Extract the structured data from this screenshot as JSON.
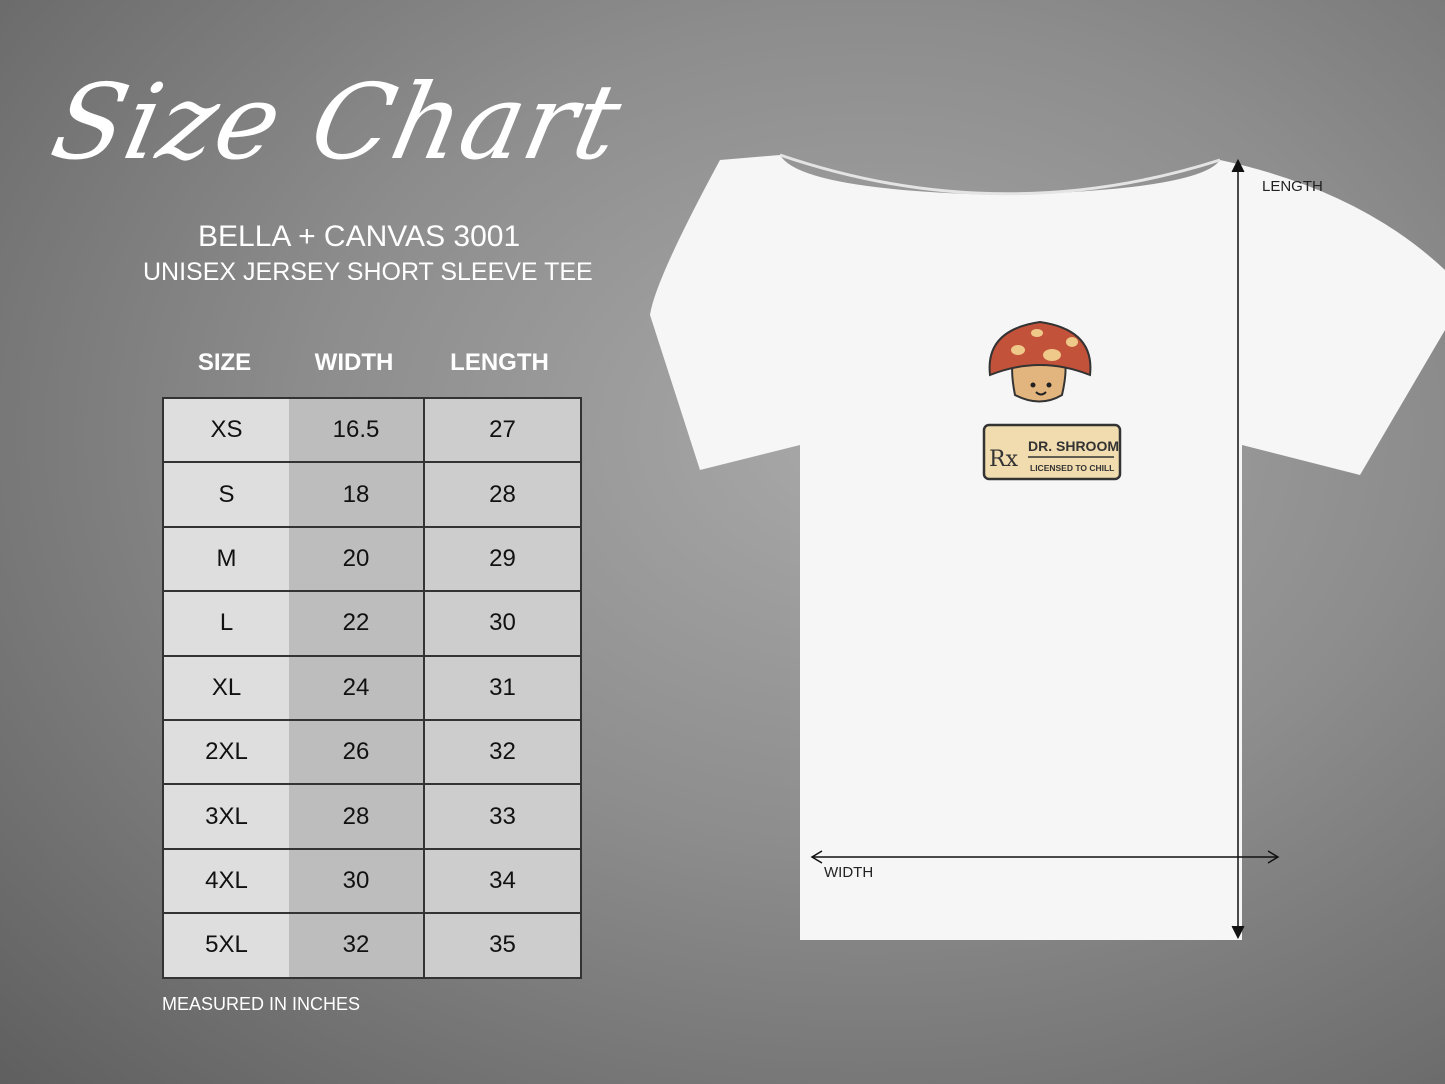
{
  "title": "Size Chart",
  "brand": "BELLA + CANVAS 3001",
  "subtitle": "UNISEX JERSEY SHORT SLEEVE TEE",
  "table": {
    "headers": [
      "SIZE",
      "WIDTH",
      "LENGTH"
    ],
    "rows": [
      [
        "XS",
        "16.5",
        "27"
      ],
      [
        "S",
        "18",
        "28"
      ],
      [
        "M",
        "20",
        "29"
      ],
      [
        "L",
        "22",
        "30"
      ],
      [
        "XL",
        "24",
        "31"
      ],
      [
        "2XL",
        "26",
        "32"
      ],
      [
        "3XL",
        "28",
        "33"
      ],
      [
        "4XL",
        "30",
        "34"
      ],
      [
        "5XL",
        "32",
        "35"
      ]
    ]
  },
  "note": "MEASURED IN INCHES",
  "diagram": {
    "length_label": "LENGTH",
    "width_label": "WIDTH"
  },
  "logo": {
    "rx": "Rx",
    "name": "DR. SHROOM",
    "tagline": "LICENSED TO CHILL"
  },
  "colors": {
    "shirt": "#f6f6f6",
    "cap": "#c2533a",
    "spots": "#efc98a",
    "stem": "#e3b57e",
    "sign": "#f0dcaf"
  }
}
